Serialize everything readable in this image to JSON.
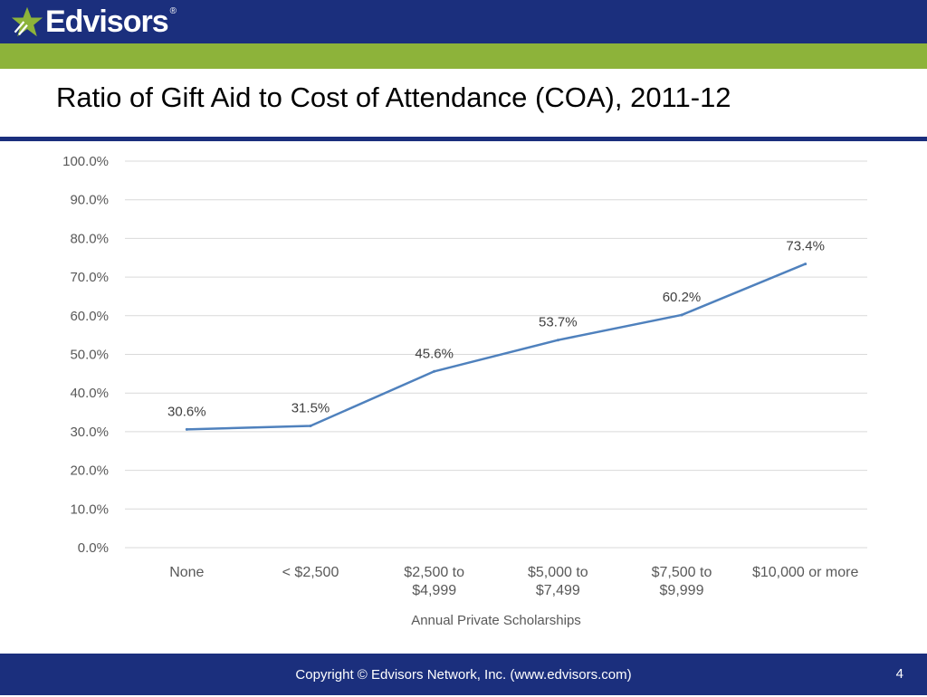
{
  "header": {
    "logo_text": "Edvisors",
    "logo_mark": "®"
  },
  "slide": {
    "title": "Ratio of Gift Aid to Cost of Attendance (COA), 2011-12"
  },
  "footer": {
    "copyright": "Copyright © Edvisors Network, Inc. (www.edvisors.com)",
    "page_number": "4"
  },
  "colors": {
    "brand_navy": "#1b2f7d",
    "brand_green": "#8db33a",
    "series_line": "#4f81bd"
  },
  "chart_data": {
    "type": "line",
    "title": "",
    "xlabel": "Annual Private Scholarships",
    "ylabel": "",
    "categories": [
      [
        "None"
      ],
      [
        "< $2,500"
      ],
      [
        "$2,500 to",
        "$4,999"
      ],
      [
        "$5,000 to",
        "$7,499"
      ],
      [
        "$7,500 to",
        "$9,999"
      ],
      [
        "$10,000 or more"
      ]
    ],
    "values": [
      30.6,
      31.5,
      45.6,
      53.7,
      60.2,
      73.4
    ],
    "data_labels": [
      "30.6%",
      "31.5%",
      "45.6%",
      "53.7%",
      "60.2%",
      "73.4%"
    ],
    "ylim": [
      0,
      100
    ],
    "yticks": [
      "0.0%",
      "10.0%",
      "20.0%",
      "30.0%",
      "40.0%",
      "50.0%",
      "60.0%",
      "70.0%",
      "80.0%",
      "90.0%",
      "100.0%"
    ],
    "grid": true,
    "legend": "none"
  }
}
